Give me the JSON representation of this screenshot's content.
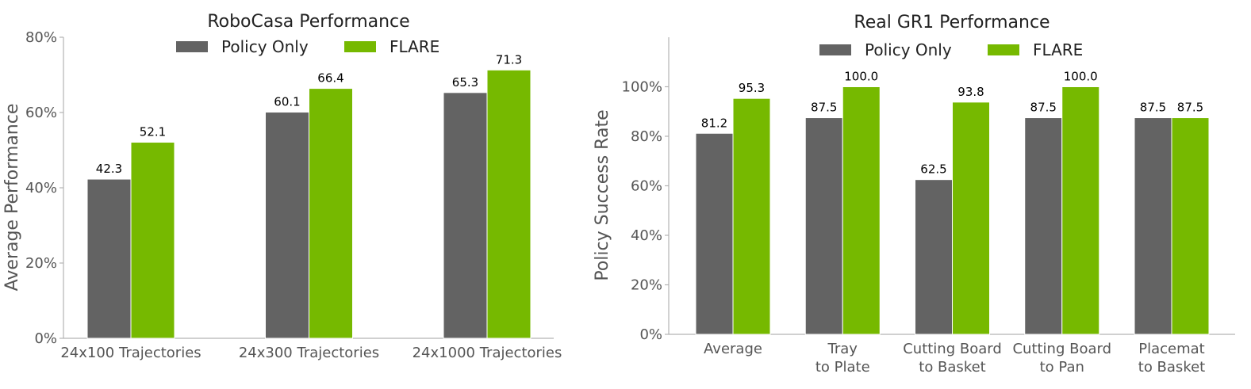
{
  "colors": {
    "policy_only": "#636363",
    "flare": "#76b900",
    "axis": "#b3b3b3",
    "tick_text": "#555555",
    "title_text": "#222222"
  },
  "chart_data": [
    {
      "type": "bar",
      "title": "RoboCasa Performance",
      "xlabel": "",
      "ylabel": "Average Performance",
      "categories": [
        "24x100 Trajectories",
        "24x300 Trajectories",
        "24x1000 Trajectories"
      ],
      "series": [
        {
          "name": "Policy Only",
          "values": [
            42.3,
            60.1,
            65.3
          ],
          "labels": [
            "42.3",
            "60.1",
            "65.3"
          ]
        },
        {
          "name": "FLARE",
          "values": [
            52.1,
            66.4,
            71.3
          ],
          "labels": [
            "52.1",
            "66.4",
            "71.3"
          ]
        }
      ],
      "ylim": [
        0,
        80
      ],
      "yticks": [
        0,
        20,
        40,
        60,
        80
      ],
      "ytick_labels": [
        "0%",
        "20%",
        "40%",
        "60%",
        "80%"
      ],
      "legend": "top-center",
      "grid": false
    },
    {
      "type": "bar",
      "title": "Real GR1 Performance",
      "xlabel": "",
      "ylabel": "Policy Success Rate",
      "categories": [
        [
          "Average"
        ],
        [
          "Tray",
          "to Plate"
        ],
        [
          "Cutting Board",
          "to Basket"
        ],
        [
          "Cutting Board",
          "to Pan"
        ],
        [
          "Placemat",
          "to Basket"
        ]
      ],
      "series": [
        {
          "name": "Policy Only",
          "values": [
            81.2,
            87.5,
            62.5,
            87.5,
            87.5
          ],
          "labels": [
            "81.2",
            "87.5",
            "62.5",
            "87.5",
            "87.5"
          ]
        },
        {
          "name": "FLARE",
          "values": [
            95.3,
            100.0,
            93.8,
            100.0,
            87.5
          ],
          "labels": [
            "95.3",
            "100.0",
            "93.8",
            "100.0",
            "87.5"
          ]
        }
      ],
      "ylim": [
        0,
        120
      ],
      "yticks": [
        0,
        20,
        40,
        60,
        80,
        100
      ],
      "ytick_labels": [
        "0%",
        "20%",
        "40%",
        "60%",
        "80%",
        "100%"
      ],
      "legend": "top-center",
      "grid": false
    }
  ]
}
